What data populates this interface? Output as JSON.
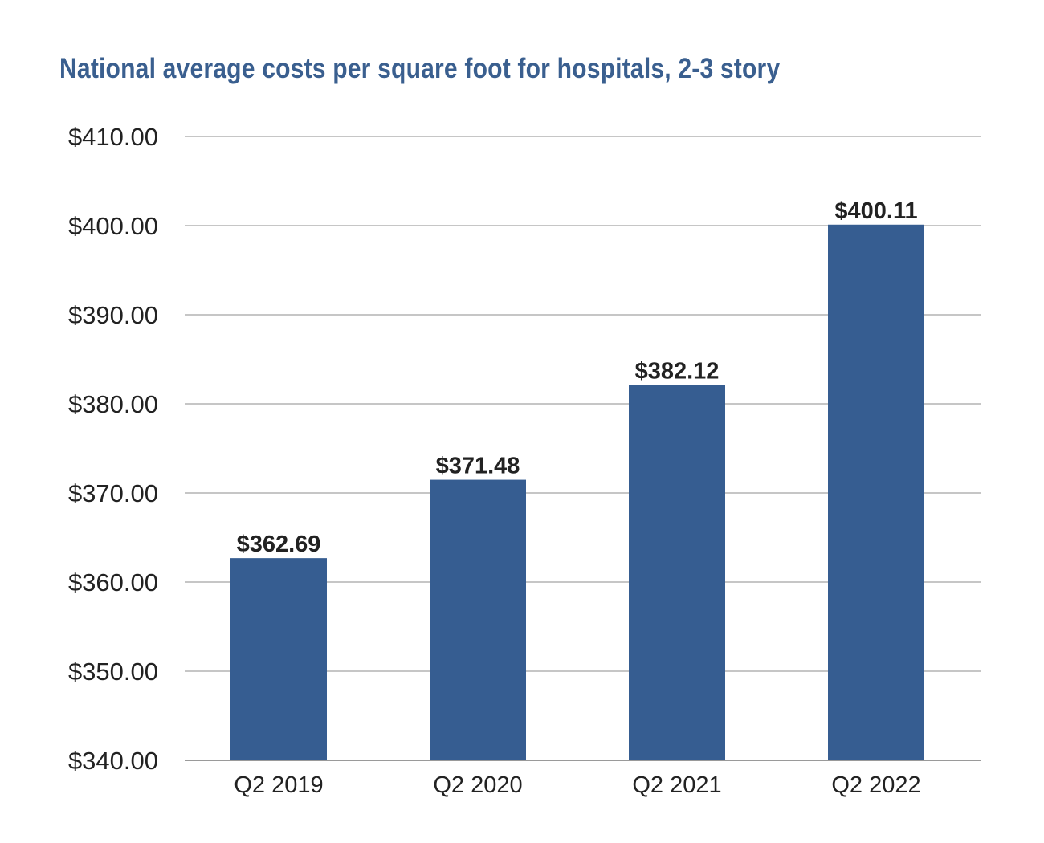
{
  "chart_data": {
    "type": "bar",
    "title": "National average costs per square foot for hospitals, 2-3 story",
    "categories": [
      "Q2 2019",
      "Q2 2020",
      "Q2 2021",
      "Q2 2022"
    ],
    "values": [
      362.69,
      371.48,
      382.12,
      400.11
    ],
    "data_labels": [
      "$362.69",
      "$371.48",
      "$382.12",
      "$400.11"
    ],
    "ylim": [
      340,
      410
    ],
    "y_ticks": [
      340,
      350,
      360,
      370,
      380,
      390,
      400,
      410
    ],
    "y_tick_labels": [
      "$340.00",
      "$350.00",
      "$360.00",
      "$370.00",
      "$380.00",
      "$390.00",
      "$400.00",
      "$410.00"
    ],
    "xlabel": "",
    "ylabel": "",
    "grid": true,
    "legend": "none",
    "colors": {
      "bar": "#365d91",
      "title": "#3a5f8f"
    }
  }
}
